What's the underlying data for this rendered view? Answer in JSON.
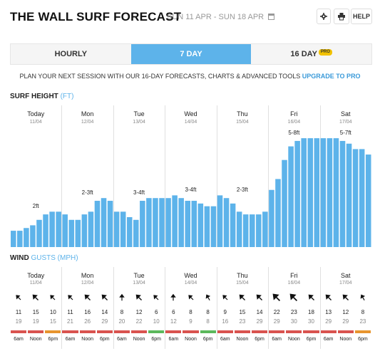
{
  "header": {
    "title": "THE WALL SURF FORECAST",
    "date_range": "SUN 11 APR - SUN 18 APR",
    "help_label": "HELP",
    "icons": [
      "settings-icon",
      "print-icon",
      "calendar-icon"
    ]
  },
  "tabs": [
    {
      "label": "HOURLY",
      "active": false
    },
    {
      "label": "7 DAY",
      "active": true
    },
    {
      "label": "16 DAY",
      "active": false,
      "badge": "PRO"
    }
  ],
  "promo": {
    "text": "PLAN YOUR NEXT SESSION WITH OUR 16-DAY FORECASTS, CHARTS & ADVANCED TOOLS",
    "link": "UPGRADE TO PRO"
  },
  "surf": {
    "label": "SURF HEIGHT",
    "unit": "(FT)"
  },
  "wind": {
    "label": "WIND",
    "unit": "GUSTS (MPH)"
  },
  "days": [
    {
      "name": "Today",
      "date": "11/04"
    },
    {
      "name": "Mon",
      "date": "12/04"
    },
    {
      "name": "Tue",
      "date": "13/04"
    },
    {
      "name": "Wed",
      "date": "14/04"
    },
    {
      "name": "Thu",
      "date": "15/04"
    },
    {
      "name": "Fri",
      "date": "16/04"
    },
    {
      "name": "Sat",
      "date": "17/04"
    }
  ],
  "chart_data": {
    "type": "bar",
    "title": "SURF HEIGHT (FT)",
    "unit": "ft",
    "bar_color": "#5db3ea",
    "values": [
      0.6,
      0.6,
      0.7,
      0.8,
      1.0,
      1.2,
      1.3,
      1.3,
      1.2,
      1.0,
      1.0,
      1.2,
      1.3,
      1.7,
      1.8,
      1.7,
      1.3,
      1.3,
      1.1,
      1.0,
      1.7,
      1.8,
      1.8,
      1.8,
      1.8,
      1.9,
      1.8,
      1.7,
      1.7,
      1.6,
      1.5,
      1.5,
      1.9,
      1.8,
      1.6,
      1.3,
      1.2,
      1.2,
      1.2,
      1.3,
      2.1,
      2.5,
      3.2,
      3.7,
      3.9,
      4.0,
      4.0,
      4.0,
      4.0,
      4.0,
      4.0,
      3.9,
      3.8,
      3.6,
      3.6,
      3.4
    ],
    "daily_labels": [
      "2ft",
      "2-3ft",
      "3-4ft",
      "3-4ft",
      "2-3ft",
      "5-8ft",
      "5-7ft"
    ],
    "ylim": [
      0,
      4.5
    ]
  },
  "wind_data": {
    "times": [
      "6am",
      "Noon",
      "6pm"
    ],
    "speeds": [
      11,
      15,
      10,
      11,
      16,
      14,
      8,
      12,
      6,
      6,
      8,
      8,
      9,
      15,
      14,
      22,
      23,
      18,
      13,
      12,
      8
    ],
    "gusts": [
      19,
      19,
      15,
      21,
      26,
      29,
      20,
      22,
      10,
      12,
      9,
      8,
      16,
      23,
      29,
      29,
      30,
      30,
      29,
      29,
      23
    ],
    "directions_deg": [
      315,
      315,
      315,
      315,
      315,
      315,
      0,
      315,
      315,
      0,
      315,
      330,
      315,
      315,
      315,
      315,
      315,
      315,
      315,
      315,
      330
    ],
    "ratings": [
      "bad",
      "bad",
      "poor",
      "bad",
      "bad",
      "bad",
      "bad",
      "bad",
      "good",
      "bad",
      "bad",
      "good",
      "bad",
      "bad",
      "bad",
      "bad",
      "bad",
      "bad",
      "bad",
      "bad",
      "poor"
    ],
    "rating_colors": {
      "good": "#5cb85c",
      "poor": "#e8952e",
      "bad": "#d9534f"
    }
  }
}
